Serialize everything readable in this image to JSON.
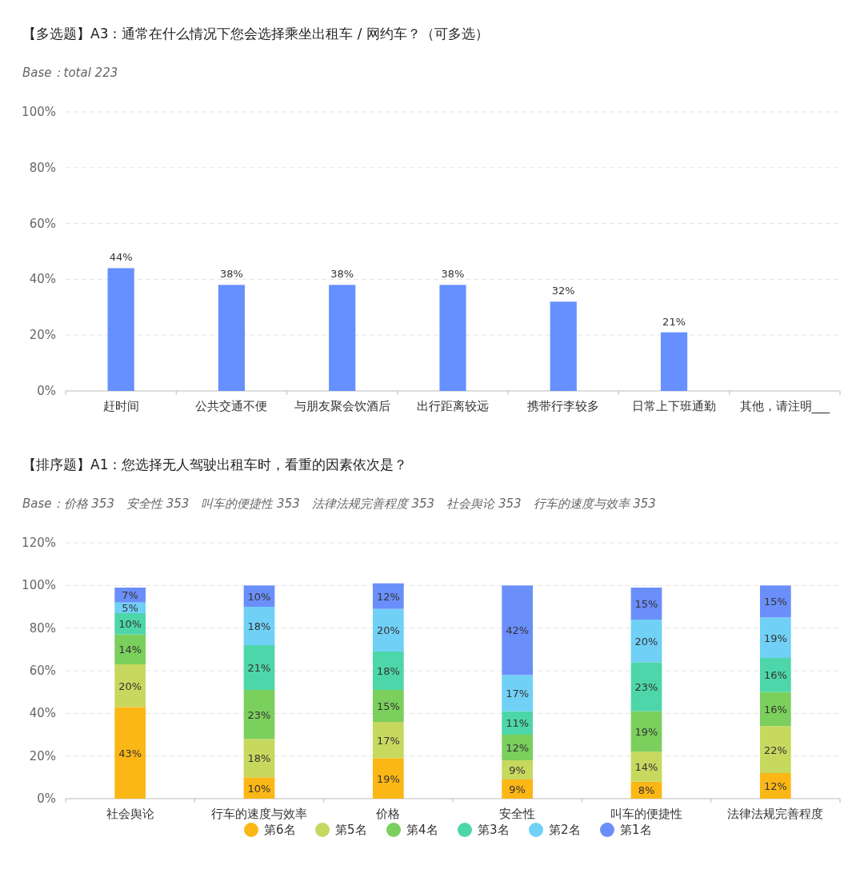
{
  "chart_data": [
    {
      "type": "bar",
      "title": "【多选题】A3：通常在什么情况下您会选择乘坐出租车 / 网约车？（可多选）",
      "subtitle": "Base：total 223",
      "categories": [
        "赶时间",
        "公共交通不便",
        "与朋友聚会饮酒后",
        "出行距离较远",
        "携带行李较多",
        "日常上下班通勤",
        "其他，请注明___"
      ],
      "values": [
        44,
        38,
        38,
        38,
        32,
        21,
        0
      ],
      "value_labels": [
        "44%",
        "38%",
        "38%",
        "38%",
        "32%",
        "21%",
        null
      ],
      "color": "#6690ff",
      "ylim": [
        0,
        100
      ],
      "yticks": [
        {
          "value": 0,
          "label": "0%"
        },
        {
          "value": 20,
          "label": "20%"
        },
        {
          "value": 40,
          "label": "40%"
        },
        {
          "value": 60,
          "label": "60%"
        },
        {
          "value": 80,
          "label": "80%"
        },
        {
          "value": 100,
          "label": "100%"
        }
      ],
      "grid": "y",
      "legend": false
    },
    {
      "type": "bar",
      "title": "【排序题】A1：您选择无人驾驶出租车时，看重的因素依次是？",
      "subtitle": "Base：价格 353　安全性 353　叫车的便捷性 353　法律法规完善程度 353　社会舆论 353　行车的速度与效率 353",
      "categories": [
        "社会舆论",
        "行车的速度与效率",
        "价格",
        "安全性",
        "叫车的便捷性",
        "法律法规完善程度"
      ],
      "stacked": true,
      "grid": "y",
      "legend": "bottom",
      "series": [
        {
          "name": "第6名",
          "color": "#fbb715",
          "values": [
            43,
            10,
            19,
            9,
            8,
            12
          ],
          "value_labels": [
            "43%",
            "10%",
            "19%",
            "9%",
            "8%",
            "12%"
          ]
        },
        {
          "name": "第5名",
          "color": "#c7d85f",
          "values": [
            20,
            18,
            17,
            9,
            14,
            22
          ],
          "value_labels": [
            "20%",
            "18%",
            "17%",
            "9%",
            "14%",
            "22%"
          ]
        },
        {
          "name": "第4名",
          "color": "#7bcf5c",
          "values": [
            14,
            23,
            15,
            12,
            19,
            16
          ],
          "value_labels": [
            "14%",
            "23%",
            "15%",
            "12%",
            "19%",
            "16%"
          ]
        },
        {
          "name": "第3名",
          "color": "#4dd6a9",
          "values": [
            10,
            21,
            18,
            11,
            23,
            16
          ],
          "value_labels": [
            "10%",
            "21%",
            "18%",
            "11%",
            "23%",
            "16%"
          ]
        },
        {
          "name": "第2名",
          "color": "#70d0f6",
          "values": [
            5,
            18,
            20,
            17,
            20,
            19
          ],
          "value_labels": [
            "5%",
            "18%",
            "20%",
            "17%",
            "20%",
            "19%"
          ]
        },
        {
          "name": "第1名",
          "color": "#6b8ffa",
          "values": [
            7,
            10,
            12,
            42,
            15,
            15
          ],
          "value_labels": [
            "7%",
            "10%",
            "12%",
            "42%",
            "15%",
            "15%"
          ]
        }
      ],
      "ylim": [
        0,
        120
      ],
      "yticks": [
        {
          "value": 0,
          "label": "0%"
        },
        {
          "value": 20,
          "label": "20%"
        },
        {
          "value": 40,
          "label": "40%"
        },
        {
          "value": 60,
          "label": "60%"
        },
        {
          "value": 80,
          "label": "80%"
        },
        {
          "value": 100,
          "label": "100%"
        },
        {
          "value": 120,
          "label": "120%"
        }
      ]
    }
  ]
}
